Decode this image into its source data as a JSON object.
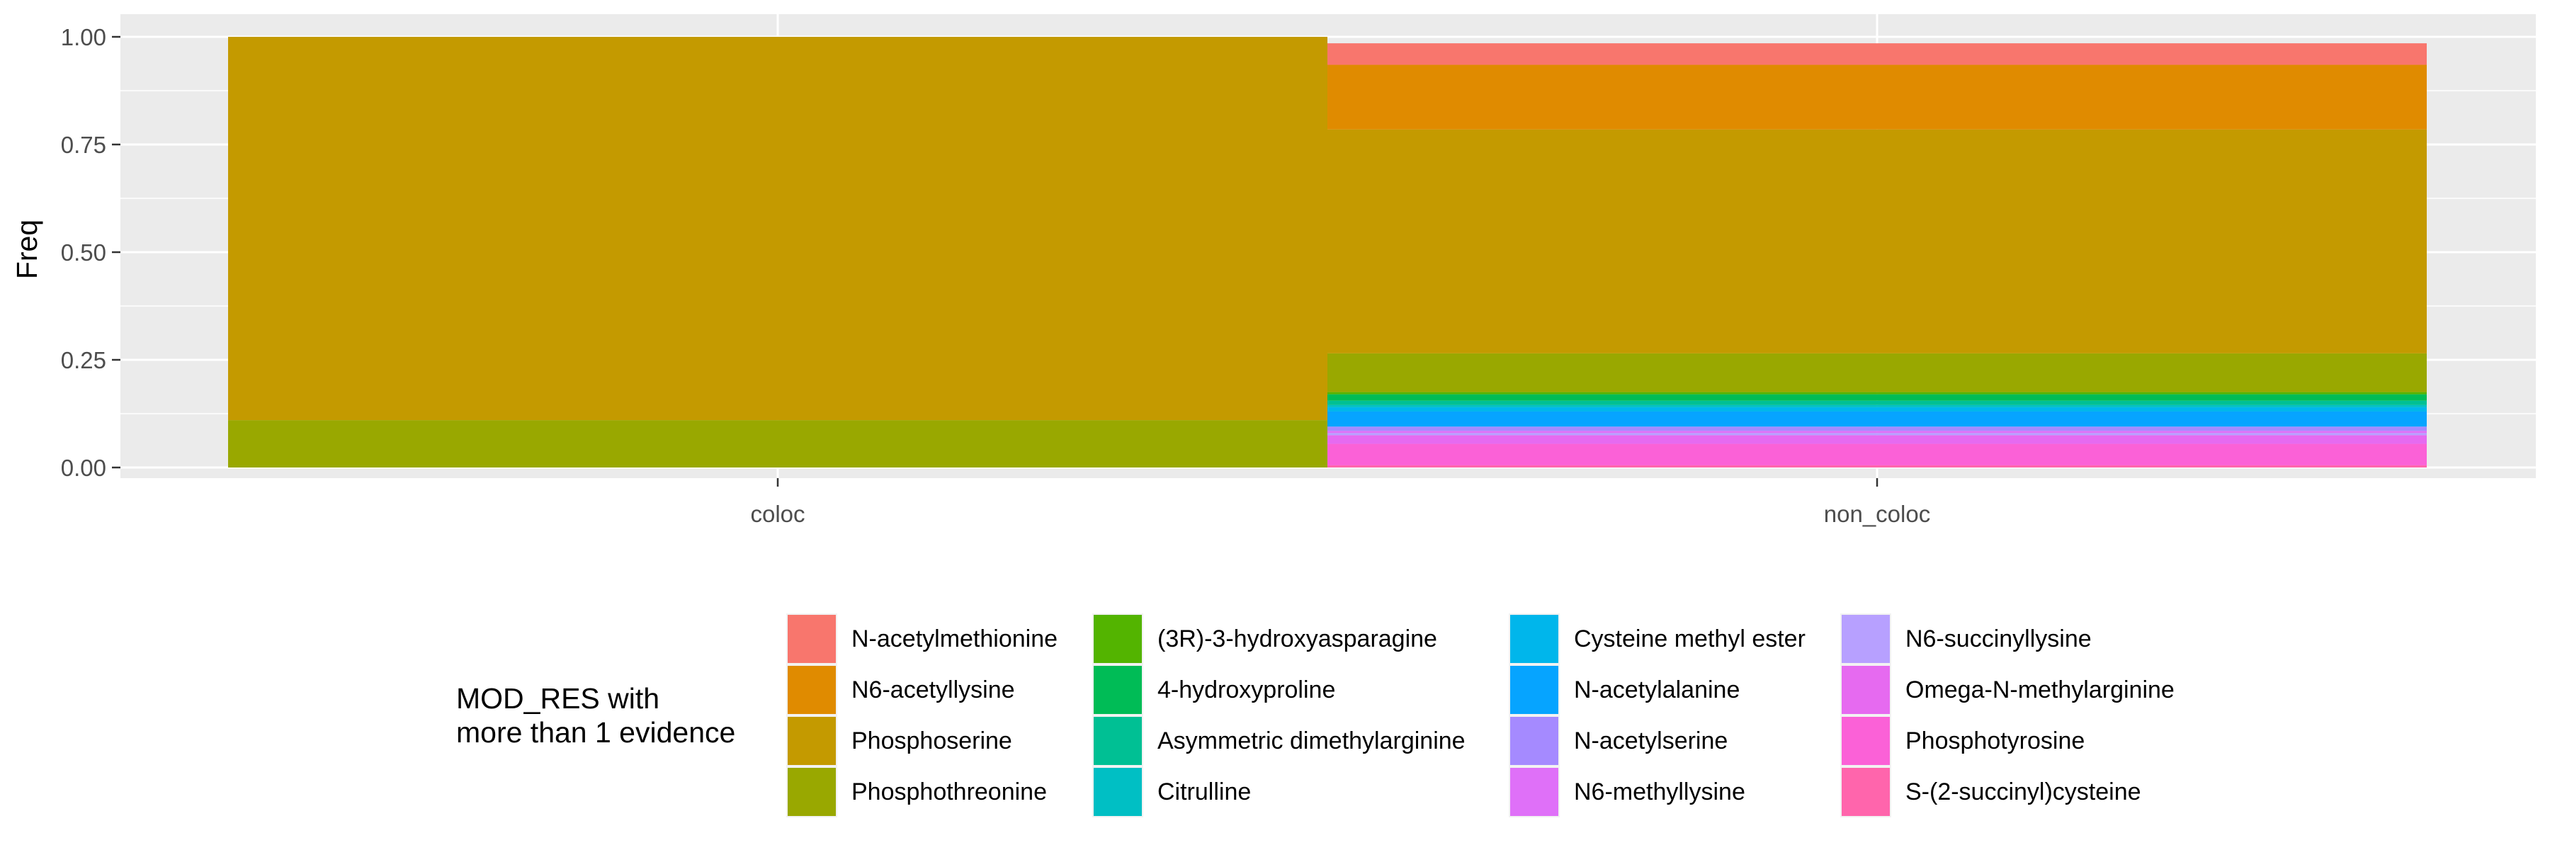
{
  "chart_data": {
    "type": "bar",
    "stacked": true,
    "ylabel": "Freq",
    "xlabel": "",
    "ylim": [
      0,
      1
    ],
    "yticks": [
      "0.00",
      "0.25",
      "0.50",
      "0.75",
      "1.00"
    ],
    "categories": [
      "coloc",
      "non_coloc"
    ],
    "grid": true,
    "legend_position": "bottom",
    "legend_title": "MOD_RES with\nmore than 1 evidence",
    "series": [
      {
        "name": "N-acetylmethionine",
        "color": "#F8766D",
        "values": [
          0,
          0.05
        ]
      },
      {
        "name": "N6-acetyllysine",
        "color": "#E08B00",
        "values": [
          0,
          0.15
        ]
      },
      {
        "name": "Phosphoserine",
        "color": "#C49A00",
        "values": [
          0.89,
          0.52
        ]
      },
      {
        "name": "Phosphothreonine",
        "color": "#99A800",
        "values": [
          0.11,
          0.09
        ]
      },
      {
        "name": "(3R)-3-hydroxyasparagine",
        "color": "#53B400",
        "values": [
          0,
          0.005
        ]
      },
      {
        "name": "4-hydroxyproline",
        "color": "#00BC56",
        "values": [
          0,
          0.015
        ]
      },
      {
        "name": "Asymmetric dimethylarginine",
        "color": "#00C094",
        "values": [
          0,
          0.01
        ]
      },
      {
        "name": "Citrulline",
        "color": "#00BFC4",
        "values": [
          0,
          0.005
        ]
      },
      {
        "name": "Cysteine methyl ester",
        "color": "#00B6EB",
        "values": [
          0,
          0.01
        ]
      },
      {
        "name": "N-acetylalanine",
        "color": "#06A4FF",
        "values": [
          0,
          0.035
        ]
      },
      {
        "name": "N-acetylserine",
        "color": "#A58AFF",
        "values": [
          0,
          0.01
        ]
      },
      {
        "name": "N6-methyllysine",
        "color": "#DF70F8",
        "values": [
          0,
          0.005
        ]
      },
      {
        "name": "N6-succinyllysine",
        "color": "#B7A0FF",
        "values": [
          0,
          0.005
        ]
      },
      {
        "name": "Omega-N-methylarginine",
        "color": "#E66AF0",
        "values": [
          0,
          0.02
        ]
      },
      {
        "name": "Phosphotyrosine",
        "color": "#FB61D7",
        "values": [
          0,
          0.05
        ]
      },
      {
        "name": "S-(2-succinyl)cysteine",
        "color": "#FF65AC",
        "values": [
          0,
          0.005
        ]
      }
    ]
  },
  "legend": {
    "title": "MOD_RES with\nmore than 1 evidence",
    "columns": [
      [
        {
          "label": "N-acetylmethionine",
          "color": "#F8766D"
        },
        {
          "label": "N6-acetyllysine",
          "color": "#E08B00"
        },
        {
          "label": "Phosphoserine",
          "color": "#C49A00"
        },
        {
          "label": "Phosphothreonine",
          "color": "#99A800"
        }
      ],
      [
        {
          "label": "(3R)-3-hydroxyasparagine",
          "color": "#53B400"
        },
        {
          "label": "4-hydroxyproline",
          "color": "#00BC56"
        },
        {
          "label": "Asymmetric dimethylarginine",
          "color": "#00C094"
        },
        {
          "label": "Citrulline",
          "color": "#00BFC4"
        }
      ],
      [
        {
          "label": "Cysteine methyl ester",
          "color": "#00B6EB"
        },
        {
          "label": "N-acetylalanine",
          "color": "#06A4FF"
        },
        {
          "label": "N-acetylserine",
          "color": "#A58AFF"
        },
        {
          "label": "N6-methyllysine",
          "color": "#DF70F8"
        }
      ],
      [
        {
          "label": "N6-succinyllysine",
          "color": "#B7A0FF"
        },
        {
          "label": "Omega-N-methylarginine",
          "color": "#E66AF0"
        },
        {
          "label": "Phosphotyrosine",
          "color": "#FB61D7"
        },
        {
          "label": "S-(2-succinyl)cysteine",
          "color": "#FF65AC"
        }
      ]
    ]
  }
}
